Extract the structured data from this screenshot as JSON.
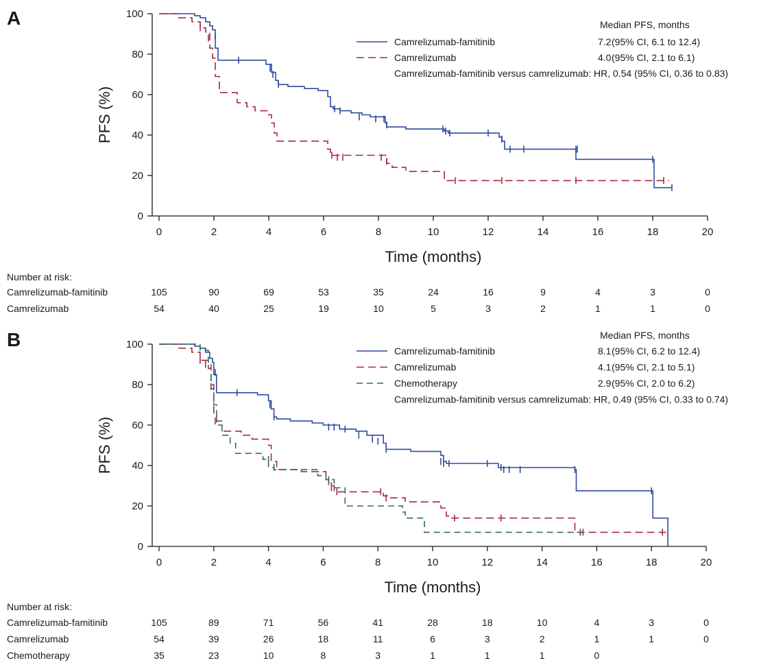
{
  "chart_data": [
    {
      "type": "line",
      "panel_label": "A",
      "xlabel": "Time (months)",
      "ylabel": "PFS (%)",
      "xlim": [
        0,
        20
      ],
      "ylim": [
        0,
        100
      ],
      "xticks": [
        0,
        2,
        4,
        6,
        8,
        10,
        12,
        14,
        16,
        18,
        20
      ],
      "yticks": [
        0,
        20,
        40,
        60,
        80,
        100
      ],
      "legend": {
        "position": "top-right",
        "header": "Median PFS, months",
        "note": "Camrelizumab-famitinib versus camrelizumab: HR, 0.54 (95% CI, 0.36 to 0.83)"
      },
      "series": [
        {
          "name": "Camrelizumab-famitinib",
          "color": "#2e4a9e",
          "dash": "solid",
          "median_text": "7.2",
          "ci_text": "(95% CI, 6.1 to 12.4)",
          "steps": [
            [
              0,
              100
            ],
            [
              1.3,
              99
            ],
            [
              1.5,
              98
            ],
            [
              1.7,
              96
            ],
            [
              1.85,
              94
            ],
            [
              1.95,
              92
            ],
            [
              2.05,
              83
            ],
            [
              2.15,
              77
            ],
            [
              3.9,
              75
            ],
            [
              4.1,
              71
            ],
            [
              4.25,
              67
            ],
            [
              4.35,
              65
            ],
            [
              4.7,
              64
            ],
            [
              5.3,
              63
            ],
            [
              5.8,
              62
            ],
            [
              6.15,
              59
            ],
            [
              6.25,
              54
            ],
            [
              6.35,
              53
            ],
            [
              6.6,
              52
            ],
            [
              7.0,
              51
            ],
            [
              7.4,
              50
            ],
            [
              7.7,
              49
            ],
            [
              8.25,
              46
            ],
            [
              8.3,
              44
            ],
            [
              9.0,
              43
            ],
            [
              10.4,
              42
            ],
            [
              10.55,
              41
            ],
            [
              12.4,
              39
            ],
            [
              12.5,
              37
            ],
            [
              12.6,
              33
            ],
            [
              15.2,
              28
            ],
            [
              18.05,
              14
            ],
            [
              18.7,
              14
            ]
          ],
          "censored": [
            [
              2.05,
              89
            ],
            [
              2.9,
              77
            ],
            [
              4.05,
              73
            ],
            [
              4.15,
              70
            ],
            [
              4.35,
              65
            ],
            [
              6.4,
              53
            ],
            [
              6.6,
              52
            ],
            [
              7.3,
              49
            ],
            [
              7.9,
              48
            ],
            [
              8.2,
              48
            ],
            [
              8.3,
              45
            ],
            [
              10.35,
              43
            ],
            [
              10.45,
              42
            ],
            [
              10.6,
              41
            ],
            [
              12.0,
              41
            ],
            [
              12.5,
              38
            ],
            [
              12.8,
              33
            ],
            [
              13.3,
              33
            ],
            [
              15.2,
              33
            ],
            [
              15.25,
              33
            ],
            [
              18.0,
              28
            ],
            [
              18.7,
              14
            ]
          ]
        },
        {
          "name": "Camrelizumab",
          "color": "#a8283a",
          "dash": "11,6",
          "median_text": "4.0",
          "ci_text": "(95% CI, 2.1 to 6.1)",
          "steps": [
            [
              0,
              100
            ],
            [
              0.7,
              98
            ],
            [
              1.2,
              96
            ],
            [
              1.5,
              93
            ],
            [
              1.7,
              91
            ],
            [
              1.85,
              83
            ],
            [
              1.95,
              78
            ],
            [
              2.05,
              69
            ],
            [
              2.2,
              61
            ],
            [
              2.85,
              56
            ],
            [
              3.2,
              54
            ],
            [
              3.5,
              52
            ],
            [
              4.0,
              50
            ],
            [
              4.1,
              46
            ],
            [
              4.2,
              41
            ],
            [
              4.3,
              37
            ],
            [
              6.15,
              33
            ],
            [
              6.25,
              30
            ],
            [
              8.3,
              26
            ],
            [
              8.5,
              24
            ],
            [
              9.0,
              22
            ],
            [
              10.4,
              17.5
            ],
            [
              18.6,
              17.5
            ]
          ],
          "censored": [
            [
              1.5,
              93
            ],
            [
              1.8,
              88
            ],
            [
              6.3,
              30
            ],
            [
              6.5,
              29
            ],
            [
              6.7,
              29
            ],
            [
              8.1,
              29
            ],
            [
              8.3,
              27
            ],
            [
              10.8,
              17.5
            ],
            [
              12.5,
              17.5
            ],
            [
              15.2,
              17.5
            ],
            [
              18.4,
              17.5
            ]
          ]
        }
      ],
      "number_at_risk": {
        "heading": "Number at risk:",
        "rows": [
          {
            "label": "Camrelizumab-famitinib",
            "values": [
              "105",
              "90",
              "69",
              "53",
              "35",
              "24",
              "16",
              "9",
              "4",
              "3",
              "0"
            ]
          },
          {
            "label": "Camrelizumab",
            "values": [
              "54",
              "40",
              "25",
              "19",
              "10",
              "5",
              "3",
              "2",
              "1",
              "1",
              "0"
            ]
          }
        ]
      }
    },
    {
      "type": "line",
      "panel_label": "B",
      "xlabel": "Time (months)",
      "ylabel": "PFS (%)",
      "xlim": [
        0,
        20
      ],
      "ylim": [
        0,
        100
      ],
      "xticks": [
        0,
        2,
        4,
        6,
        8,
        10,
        12,
        14,
        16,
        18,
        20
      ],
      "yticks": [
        0,
        20,
        40,
        60,
        80,
        100
      ],
      "legend": {
        "position": "top-right",
        "header": "Median PFS, months",
        "note": "Camrelizumab-famitinib versus camrelizumab: HR, 0.49 (95% CI, 0.33 to 0.74)"
      },
      "series": [
        {
          "name": "Camrelizumab-famitinib",
          "color": "#2e4a9e",
          "dash": "solid",
          "median_text": "8.1",
          "ci_text": "(95% CI, 6.2 to 12.4)",
          "steps": [
            [
              0,
              100
            ],
            [
              1.3,
              99
            ],
            [
              1.5,
              98
            ],
            [
              1.7,
              96
            ],
            [
              1.85,
              93
            ],
            [
              1.95,
              91
            ],
            [
              2.0,
              85
            ],
            [
              2.1,
              76
            ],
            [
              3.6,
              75
            ],
            [
              4.0,
              72
            ],
            [
              4.1,
              68
            ],
            [
              4.2,
              64
            ],
            [
              4.3,
              63
            ],
            [
              4.8,
              62
            ],
            [
              5.6,
              61
            ],
            [
              6.0,
              60
            ],
            [
              6.6,
              58
            ],
            [
              7.2,
              57
            ],
            [
              7.6,
              55
            ],
            [
              8.2,
              51
            ],
            [
              8.3,
              48
            ],
            [
              9.2,
              47
            ],
            [
              10.3,
              45
            ],
            [
              10.4,
              42
            ],
            [
              10.5,
              41
            ],
            [
              12.4,
              39
            ],
            [
              15.2,
              38
            ],
            [
              15.25,
              27.5
            ],
            [
              18.0,
              27.5
            ],
            [
              18.05,
              14
            ],
            [
              18.6,
              0
            ]
          ],
          "censored": [
            [
              2.05,
              86
            ],
            [
              2.85,
              76
            ],
            [
              4.05,
              70
            ],
            [
              4.2,
              64
            ],
            [
              6.2,
              59
            ],
            [
              6.4,
              59
            ],
            [
              6.8,
              58
            ],
            [
              7.3,
              55
            ],
            [
              7.8,
              53
            ],
            [
              8.0,
              52
            ],
            [
              8.3,
              48
            ],
            [
              10.3,
              42
            ],
            [
              10.4,
              41
            ],
            [
              10.6,
              41
            ],
            [
              12.0,
              41
            ],
            [
              12.5,
              39
            ],
            [
              12.6,
              38
            ],
            [
              12.8,
              38
            ],
            [
              13.2,
              38
            ],
            [
              15.2,
              38
            ],
            [
              18.0,
              27.5
            ]
          ]
        },
        {
          "name": "Camrelizumab",
          "color": "#a8283a",
          "dash": "11,6",
          "median_text": "4.1",
          "ci_text": "(95% CI, 2.1 to 5.1)",
          "steps": [
            [
              0,
              100
            ],
            [
              0.7,
              98
            ],
            [
              1.2,
              96
            ],
            [
              1.5,
              92
            ],
            [
              1.8,
              88
            ],
            [
              1.9,
              80
            ],
            [
              2.0,
              65
            ],
            [
              2.1,
              60
            ],
            [
              2.3,
              57
            ],
            [
              3.0,
              55
            ],
            [
              3.4,
              53
            ],
            [
              4.0,
              50
            ],
            [
              4.1,
              42
            ],
            [
              4.3,
              38
            ],
            [
              5.2,
              37
            ],
            [
              6.1,
              33
            ],
            [
              6.2,
              30
            ],
            [
              6.4,
              27
            ],
            [
              8.2,
              25
            ],
            [
              8.4,
              24
            ],
            [
              9.0,
              22
            ],
            [
              10.3,
              19
            ],
            [
              10.5,
              15
            ],
            [
              10.7,
              14
            ],
            [
              15.2,
              7
            ],
            [
              18.6,
              7
            ]
          ],
          "censored": [
            [
              1.5,
              92
            ],
            [
              1.7,
              90
            ],
            [
              1.9,
              79
            ],
            [
              6.3,
              30
            ],
            [
              6.5,
              27
            ],
            [
              8.1,
              27
            ],
            [
              8.3,
              24
            ],
            [
              10.8,
              14
            ],
            [
              12.5,
              14
            ],
            [
              15.4,
              7
            ],
            [
              18.4,
              7
            ]
          ]
        },
        {
          "name": "Chemotherapy",
          "color": "#2f6b5c",
          "dash": "9,6",
          "median_text": "2.9",
          "ci_text": "(95% CI, 2.0 to 6.2)",
          "steps": [
            [
              0,
              100
            ],
            [
              1.5,
              97
            ],
            [
              1.8,
              90
            ],
            [
              1.9,
              78
            ],
            [
              2.0,
              70
            ],
            [
              2.1,
              62
            ],
            [
              2.3,
              55
            ],
            [
              2.6,
              51
            ],
            [
              2.8,
              46
            ],
            [
              3.8,
              43
            ],
            [
              4.0,
              39
            ],
            [
              4.2,
              38
            ],
            [
              5.8,
              35
            ],
            [
              6.1,
              33
            ],
            [
              6.4,
              29
            ],
            [
              6.8,
              20
            ],
            [
              8.9,
              17
            ],
            [
              9.0,
              14
            ],
            [
              9.7,
              7
            ],
            [
              15.5,
              7
            ]
          ],
          "censored": [
            [
              2.05,
              62
            ],
            [
              4.0,
              43
            ],
            [
              4.2,
              39
            ],
            [
              6.2,
              33
            ],
            [
              6.3,
              29
            ],
            [
              15.5,
              7
            ]
          ]
        }
      ],
      "number_at_risk": {
        "heading": "Number at risk:",
        "rows": [
          {
            "label": "Camrelizumab-famitinib",
            "values": [
              "105",
              "89",
              "71",
              "56",
              "41",
              "28",
              "18",
              "10",
              "4",
              "3",
              "0"
            ]
          },
          {
            "label": "Camrelizumab",
            "values": [
              "54",
              "39",
              "26",
              "18",
              "11",
              "6",
              "3",
              "2",
              "1",
              "1",
              "0"
            ]
          },
          {
            "label": "Chemotherapy",
            "values": [
              "35",
              "23",
              "10",
              "8",
              "3",
              "1",
              "1",
              "1",
              "0",
              "",
              ""
            ]
          }
        ]
      }
    }
  ]
}
